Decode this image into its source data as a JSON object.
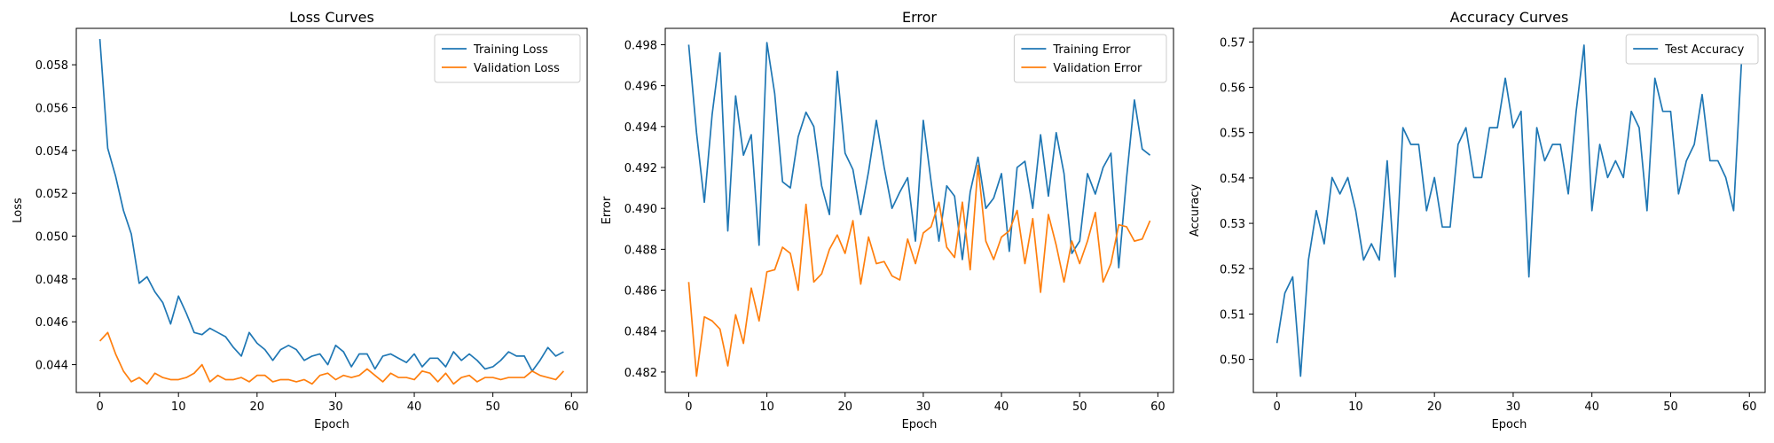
{
  "chart_data": [
    {
      "type": "line",
      "title": "Loss Curves",
      "xlabel": "Epoch",
      "ylabel": "Loss",
      "xlim": [
        -3,
        62
      ],
      "ylim": [
        0.0427,
        0.0597
      ],
      "xticks": [
        0,
        10,
        20,
        30,
        40,
        50,
        60
      ],
      "yticks": [
        0.044,
        0.046,
        0.048,
        0.05,
        0.052,
        0.054,
        0.056,
        0.058
      ],
      "ytick_decimals": 3,
      "legend_position": "top-right",
      "grid": false,
      "series": [
        {
          "name": "Training Loss",
          "color": "#1f77b4",
          "values": [
            0.0592,
            0.0541,
            0.0528,
            0.0512,
            0.0501,
            0.0478,
            0.0481,
            0.0474,
            0.0469,
            0.0459,
            0.0472,
            0.0464,
            0.0455,
            0.0454,
            0.0457,
            0.0455,
            0.0453,
            0.0448,
            0.0444,
            0.0455,
            0.045,
            0.0447,
            0.0442,
            0.0447,
            0.0449,
            0.0447,
            0.0442,
            0.0444,
            0.0445,
            0.044,
            0.0449,
            0.0446,
            0.0439,
            0.0445,
            0.0445,
            0.0438,
            0.0444,
            0.0445,
            0.0443,
            0.0441,
            0.0445,
            0.0439,
            0.0443,
            0.0443,
            0.0439,
            0.0446,
            0.0442,
            0.0445,
            0.0442,
            0.0438,
            0.0439,
            0.0442,
            0.0446,
            0.0444,
            0.0444,
            0.0437,
            0.0442,
            0.0448,
            0.0444,
            0.0446
          ]
        },
        {
          "name": "Validation Loss",
          "color": "#ff7f0e",
          "values": [
            0.0451,
            0.0455,
            0.0445,
            0.0437,
            0.0432,
            0.0434,
            0.0431,
            0.0436,
            0.0434,
            0.0433,
            0.0433,
            0.0434,
            0.0436,
            0.044,
            0.0432,
            0.0435,
            0.0433,
            0.0433,
            0.0434,
            0.0432,
            0.0435,
            0.0435,
            0.0432,
            0.0433,
            0.0433,
            0.0432,
            0.0433,
            0.0431,
            0.0435,
            0.0436,
            0.0433,
            0.0435,
            0.0434,
            0.0435,
            0.0438,
            0.0435,
            0.0432,
            0.0436,
            0.0434,
            0.0434,
            0.0433,
            0.0437,
            0.0436,
            0.0432,
            0.0436,
            0.0431,
            0.0434,
            0.0435,
            0.0432,
            0.0434,
            0.0434,
            0.0433,
            0.0434,
            0.0434,
            0.0434,
            0.0437,
            0.0435,
            0.0434,
            0.0433,
            0.0437
          ]
        }
      ]
    },
    {
      "type": "line",
      "title": "Error",
      "xlabel": "Epoch",
      "ylabel": "Error",
      "xlim": [
        -3,
        62
      ],
      "ylim": [
        0.481,
        0.4988
      ],
      "xticks": [
        0,
        10,
        20,
        30,
        40,
        50,
        60
      ],
      "yticks": [
        0.482,
        0.484,
        0.486,
        0.488,
        0.49,
        0.492,
        0.494,
        0.496,
        0.498
      ],
      "ytick_decimals": 3,
      "legend_position": "top-right",
      "grid": false,
      "series": [
        {
          "name": "Training Error",
          "color": "#1f77b4",
          "values": [
            0.498,
            0.4937,
            0.4903,
            0.4946,
            0.4976,
            0.4889,
            0.4955,
            0.4926,
            0.4936,
            0.4882,
            0.4981,
            0.4956,
            0.4913,
            0.491,
            0.4935,
            0.4947,
            0.494,
            0.4911,
            0.4897,
            0.4967,
            0.4927,
            0.4919,
            0.4897,
            0.4918,
            0.4943,
            0.492,
            0.49,
            0.4908,
            0.4915,
            0.4884,
            0.4943,
            0.4913,
            0.4884,
            0.4911,
            0.4906,
            0.4875,
            0.4908,
            0.4925,
            0.49,
            0.4905,
            0.4917,
            0.4879,
            0.492,
            0.4923,
            0.49,
            0.4936,
            0.4906,
            0.4937,
            0.4917,
            0.4878,
            0.4884,
            0.4917,
            0.4907,
            0.492,
            0.4927,
            0.4871,
            0.4915,
            0.4953,
            0.4929,
            0.4926
          ]
        },
        {
          "name": "Validation Error",
          "color": "#ff7f0e",
          "values": [
            0.4864,
            0.4818,
            0.4847,
            0.4845,
            0.4841,
            0.4823,
            0.4848,
            0.4834,
            0.4861,
            0.4845,
            0.4869,
            0.487,
            0.4881,
            0.4878,
            0.486,
            0.4902,
            0.4864,
            0.4868,
            0.488,
            0.4887,
            0.4878,
            0.4894,
            0.4863,
            0.4886,
            0.4873,
            0.4874,
            0.4867,
            0.4865,
            0.4885,
            0.4873,
            0.4888,
            0.4891,
            0.4903,
            0.4881,
            0.4876,
            0.4903,
            0.487,
            0.4921,
            0.4884,
            0.4875,
            0.4886,
            0.4889,
            0.4899,
            0.4873,
            0.4895,
            0.4859,
            0.4897,
            0.4882,
            0.4864,
            0.4884,
            0.4873,
            0.4884,
            0.4898,
            0.4864,
            0.4873,
            0.4892,
            0.4891,
            0.4884,
            0.4885,
            0.4894
          ]
        }
      ]
    },
    {
      "type": "line",
      "title": "Accuracy Curves",
      "xlabel": "Epoch",
      "ylabel": "Accuracy",
      "xlim": [
        -3,
        62
      ],
      "ylim": [
        0.4927,
        0.573
      ],
      "xticks": [
        0,
        10,
        20,
        30,
        40,
        50,
        60
      ],
      "yticks": [
        0.5,
        0.51,
        0.52,
        0.53,
        0.54,
        0.55,
        0.56,
        0.57
      ],
      "ytick_decimals": 2,
      "legend_position": "top-right",
      "grid": false,
      "series": [
        {
          "name": "Test Accuracy",
          "color": "#1f77b4",
          "values": [
            0.5036,
            0.5146,
            0.5182,
            0.4963,
            0.5219,
            0.5328,
            0.5255,
            0.5401,
            0.5365,
            0.5401,
            0.5328,
            0.5219,
            0.5255,
            0.5219,
            0.5438,
            0.5182,
            0.5511,
            0.5474,
            0.5474,
            0.5328,
            0.5401,
            0.5292,
            0.5292,
            0.5474,
            0.5511,
            0.5401,
            0.5401,
            0.5511,
            0.5511,
            0.562,
            0.5511,
            0.5547,
            0.5182,
            0.5511,
            0.5438,
            0.5474,
            0.5474,
            0.5365,
            0.5547,
            0.5693,
            0.5328,
            0.5474,
            0.5401,
            0.5438,
            0.5401,
            0.5547,
            0.5511,
            0.5328,
            0.562,
            0.5547,
            0.5547,
            0.5365,
            0.5438,
            0.5474,
            0.5584,
            0.5438,
            0.5438,
            0.5401,
            0.5328,
            0.5657
          ]
        }
      ]
    }
  ]
}
